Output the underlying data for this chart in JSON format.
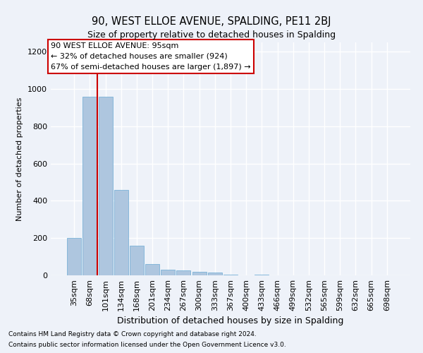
{
  "title": "90, WEST ELLOE AVENUE, SPALDING, PE11 2BJ",
  "subtitle": "Size of property relative to detached houses in Spalding",
  "xlabel": "Distribution of detached houses by size in Spalding",
  "ylabel": "Number of detached properties",
  "categories": [
    "35sqm",
    "68sqm",
    "101sqm",
    "134sqm",
    "168sqm",
    "201sqm",
    "234sqm",
    "267sqm",
    "300sqm",
    "333sqm",
    "367sqm",
    "400sqm",
    "433sqm",
    "466sqm",
    "499sqm",
    "532sqm",
    "565sqm",
    "599sqm",
    "632sqm",
    "665sqm",
    "698sqm"
  ],
  "values": [
    200,
    960,
    960,
    460,
    160,
    60,
    30,
    25,
    20,
    15,
    5,
    0,
    5,
    0,
    0,
    0,
    0,
    0,
    0,
    0,
    0
  ],
  "bar_color": "#aec6df",
  "bar_edge_color": "#6aaad4",
  "background_color": "#eef2f9",
  "grid_color": "#ffffff",
  "property_line_x": 1.5,
  "annotation_text_line1": "90 WEST ELLOE AVENUE: 95sqm",
  "annotation_text_line2": "← 32% of detached houses are smaller (924)",
  "annotation_text_line3": "67% of semi-detached houses are larger (1,897) →",
  "annotation_box_color": "#ffffff",
  "annotation_box_edge": "#cc0000",
  "ylim": [
    0,
    1250
  ],
  "yticks": [
    0,
    200,
    400,
    600,
    800,
    1000,
    1200
  ],
  "footnote1": "Contains HM Land Registry data © Crown copyright and database right 2024.",
  "footnote2": "Contains public sector information licensed under the Open Government Licence v3.0.",
  "title_fontsize": 10.5,
  "subtitle_fontsize": 9,
  "xlabel_fontsize": 9,
  "ylabel_fontsize": 8,
  "tick_fontsize": 8,
  "annotation_fontsize": 8,
  "footnote_fontsize": 6.5
}
